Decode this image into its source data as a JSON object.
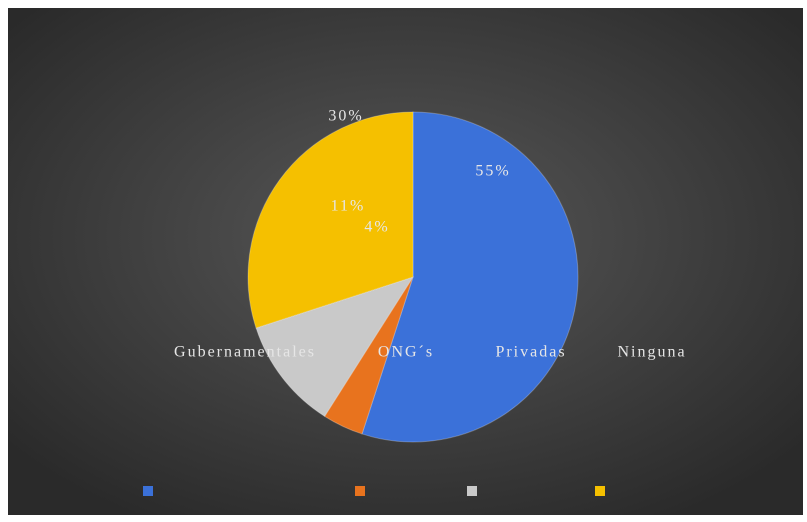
{
  "chart_data": {
    "type": "pie",
    "categories": [
      "Gubernamentales",
      "ONG´s",
      "Privadas",
      "Ninguna"
    ],
    "values": [
      55,
      4,
      11,
      30
    ],
    "value_labels": [
      "55%",
      "4%",
      "11%",
      "30%"
    ],
    "colors": [
      "#3b71d9",
      "#e8731e",
      "#c9c9c9",
      "#f5c000"
    ]
  }
}
